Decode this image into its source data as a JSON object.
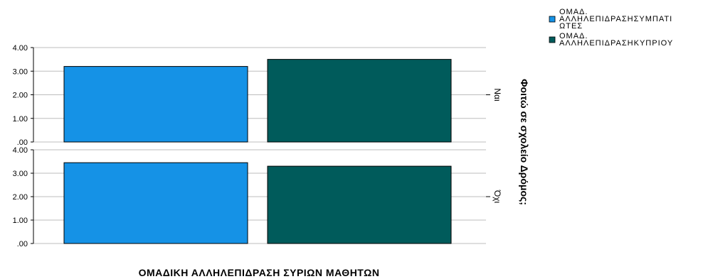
{
  "chart_data": {
    "type": "bar",
    "xlabel": "ΟΜΑΔΙΚΗ ΑΛΛΗΛΕΠΙΔΡΑΣΗ ΣΥΡΙΩΝ ΜΑΘΗΤΩΝ",
    "row_variable_label": "Φοιτώ σε σχολείο Δρόμος;",
    "ylim": [
      0,
      4
    ],
    "yticks": [
      ".00",
      "1.00",
      "2.00",
      "3.00",
      "4.00"
    ],
    "grid": true,
    "legend_position": "top-right",
    "series": [
      {
        "name_lines": [
          "ΟΜΑΔ.",
          "ΑΛΛΗΛΕΠΙΔΡΑΣΗΣΥΜΠΑΤΙ",
          "ΩΤΕΣ"
        ],
        "color": "#1592e6"
      },
      {
        "name_lines": [
          "ΟΜΑΔ.",
          "ΑΛΛΗΛΕΠΙΔΡΑΣΗΚΥΠΡΙΟΥ"
        ],
        "color": "#005b5b"
      }
    ],
    "panels": [
      {
        "label": "Ναι",
        "values": [
          3.2,
          3.5
        ]
      },
      {
        "label": "Όχι",
        "values": [
          3.45,
          3.3
        ]
      }
    ]
  }
}
